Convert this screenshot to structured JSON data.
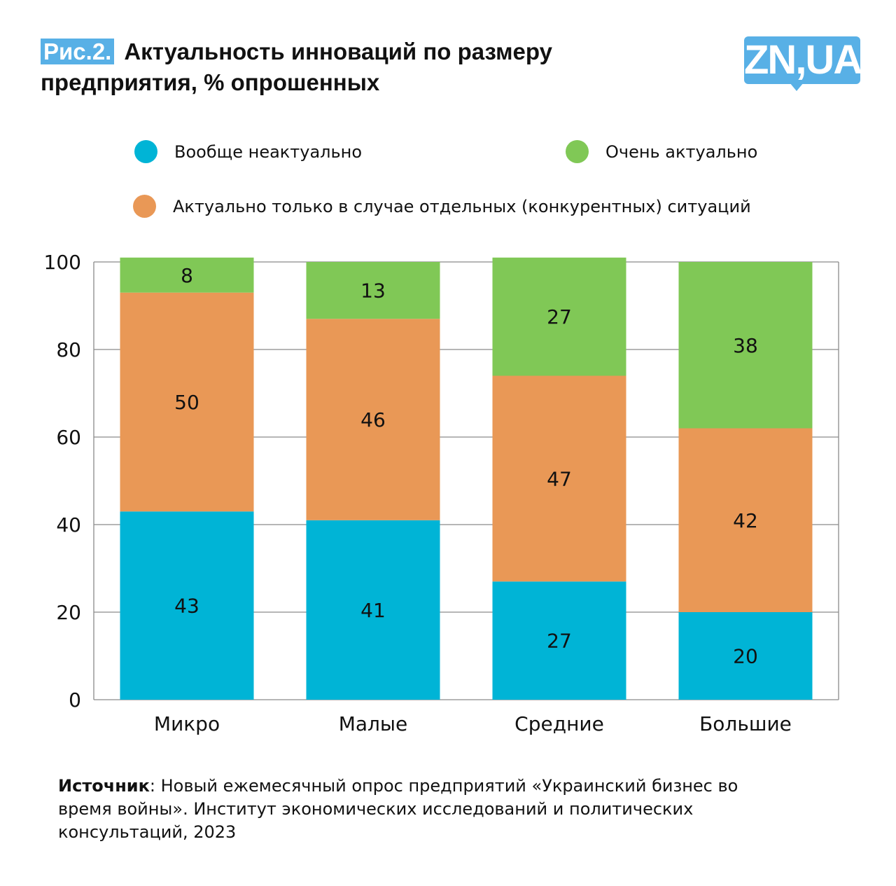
{
  "header": {
    "figure_label": "Рис.2.",
    "title": "Актуальность инноваций по размеру предприятия, % опрошенных",
    "logo": "ZN,UA"
  },
  "colors": {
    "none": "#00b4d6",
    "conditional": "#e99856",
    "very": "#80c856",
    "logo": "#58b0e6"
  },
  "chart_data": {
    "type": "bar",
    "stacked": true,
    "title": "Актуальность инноваций по размеру предприятия, % опрошенных",
    "categories": [
      "Микро",
      "Малые",
      "Средние",
      "Большие"
    ],
    "series": [
      {
        "name": "Вообще неактуально",
        "color": "#00b4d6",
        "values": [
          43,
          41,
          27,
          20
        ]
      },
      {
        "name": "Актуально только в случае отдельных (конкурентных) ситуаций",
        "color": "#e99856",
        "values": [
          50,
          46,
          47,
          42
        ]
      },
      {
        "name": "Очень актуально",
        "color": "#80c856",
        "values": [
          8,
          13,
          27,
          38
        ]
      }
    ],
    "yticks": [
      0,
      20,
      40,
      60,
      80,
      100
    ],
    "ylim": [
      0,
      100
    ],
    "grid": true,
    "legend_placement": "top",
    "xlabel": "",
    "ylabel": ""
  },
  "source": {
    "label": "Источник",
    "text": ": Новый ежемесячный опрос предприятий «Украинский бизнес во время войны». Институт экономических исследований и политических консультаций, 2023"
  }
}
